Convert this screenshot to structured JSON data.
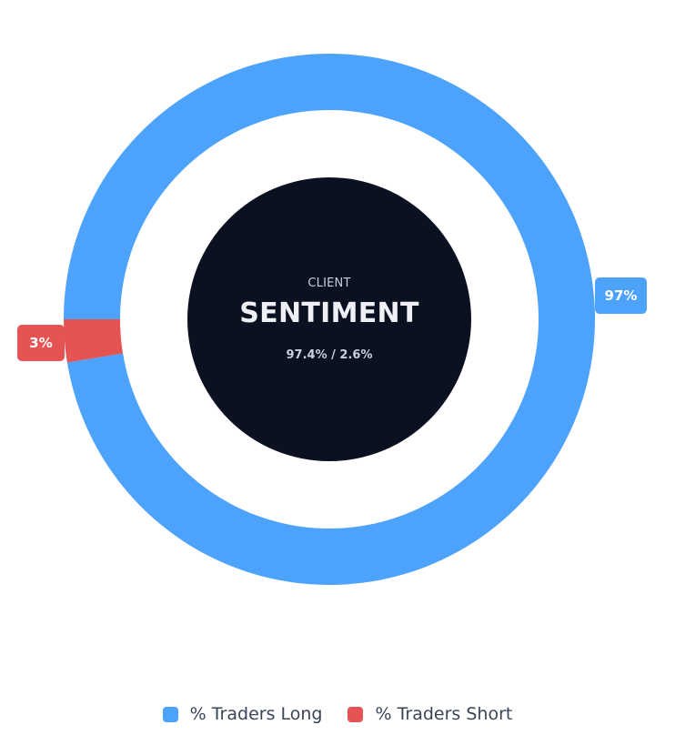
{
  "chart_data": {
    "type": "pie",
    "subtype": "doughnut",
    "title": "CLIENT SENTIMENT",
    "categories": [
      "% Traders Long",
      "% Traders Short"
    ],
    "values": [
      97.4,
      2.6
    ],
    "data_labels": [
      "97%",
      "3%"
    ],
    "colors": [
      "#4da3fc",
      "#e55353"
    ],
    "legend_position": "bottom"
  },
  "center": {
    "subtitle": "CLIENT",
    "title": "SENTIMENT",
    "values_text": "97.4% / 2.6%",
    "background": "#0b1120"
  },
  "labels": {
    "long": "97%",
    "short": "3%"
  },
  "legend": {
    "items": [
      {
        "label": "% Traders Long",
        "color": "#4da3fc"
      },
      {
        "label": "% Traders Short",
        "color": "#e55353"
      }
    ]
  }
}
